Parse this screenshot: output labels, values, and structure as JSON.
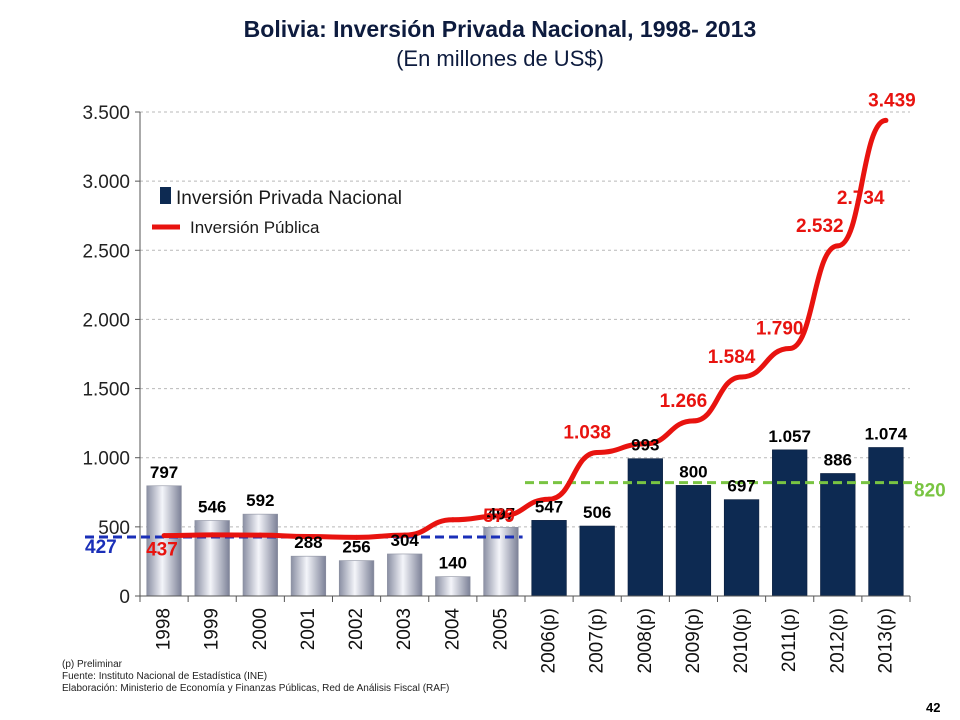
{
  "title": "Bolivia: Inversión Privada Nacional, 1998- 2013",
  "subtitle": "(En millones de US$)",
  "footnotes": [
    "(p) Preliminar",
    "Fuente: Instituto Nacional de Estadística (INE)",
    "Elaboración: Ministerio de Economía y Finanzas Públicas, Red de Análisis Fiscal (RAF)"
  ],
  "page_number": "42",
  "chart_data": {
    "type": "bar",
    "categories": [
      "1998",
      "1999",
      "2000",
      "2001",
      "2002",
      "2003",
      "2004",
      "2005",
      "2006(p)",
      "2007(p)",
      "2008(p)",
      "2009(p)",
      "2010(p)",
      "2011(p)",
      "2012(p)",
      "2013(p)"
    ],
    "ylim": [
      0,
      3500
    ],
    "yticks": [
      0,
      500,
      1000,
      1500,
      2000,
      2500,
      3000,
      3500
    ],
    "ytick_labels": [
      "0",
      "500",
      "1.000",
      "1.500",
      "2.000",
      "2.500",
      "3.000",
      "3.500"
    ],
    "grid": true,
    "legend_placement": "top-left",
    "series": [
      {
        "name": "Inversión Privada Nacional",
        "kind": "bar",
        "values": [
          797,
          546,
          592,
          288,
          256,
          304,
          140,
          497,
          547,
          506,
          993,
          800,
          697,
          1057,
          886,
          1074
        ],
        "value_labels": [
          "797",
          "546",
          "592",
          "288",
          "256",
          "304",
          "140",
          "497",
          "547",
          "506",
          "993",
          "800",
          "697",
          "1.057",
          "886",
          "1.074"
        ],
        "colors": {
          "early": "#b8bcc8",
          "late": "#0d2a52"
        }
      },
      {
        "name": "Inversión Pública",
        "kind": "line",
        "color": "#e8130f",
        "values": [
          437,
          442,
          440,
          430,
          424,
          440,
          551,
          579,
          700,
          1038,
          1100,
          1266,
          1584,
          1790,
          2532,
          3439
        ],
        "labeled_points": [
          {
            "index": 0,
            "label": "437"
          },
          {
            "index": 7,
            "label": "579"
          },
          {
            "index": 9,
            "label": "1.038"
          },
          {
            "index": 11,
            "label": "1.266"
          },
          {
            "index": 12,
            "label": "1.584"
          },
          {
            "index": 13,
            "label": "1.790"
          },
          {
            "index": 14,
            "label": "2.532"
          },
          {
            "index": 14.6,
            "label": "2.734",
            "value": 2734
          },
          {
            "index": 15,
            "label": "3.439"
          }
        ]
      }
    ],
    "reference_lines": [
      {
        "value": 427,
        "label": "427",
        "color": "#1a2fb8",
        "from_index": 0,
        "to_index": 7
      },
      {
        "value": 820,
        "label": "820",
        "color": "#79c442",
        "from_index": 8,
        "to_index": 15
      }
    ]
  }
}
